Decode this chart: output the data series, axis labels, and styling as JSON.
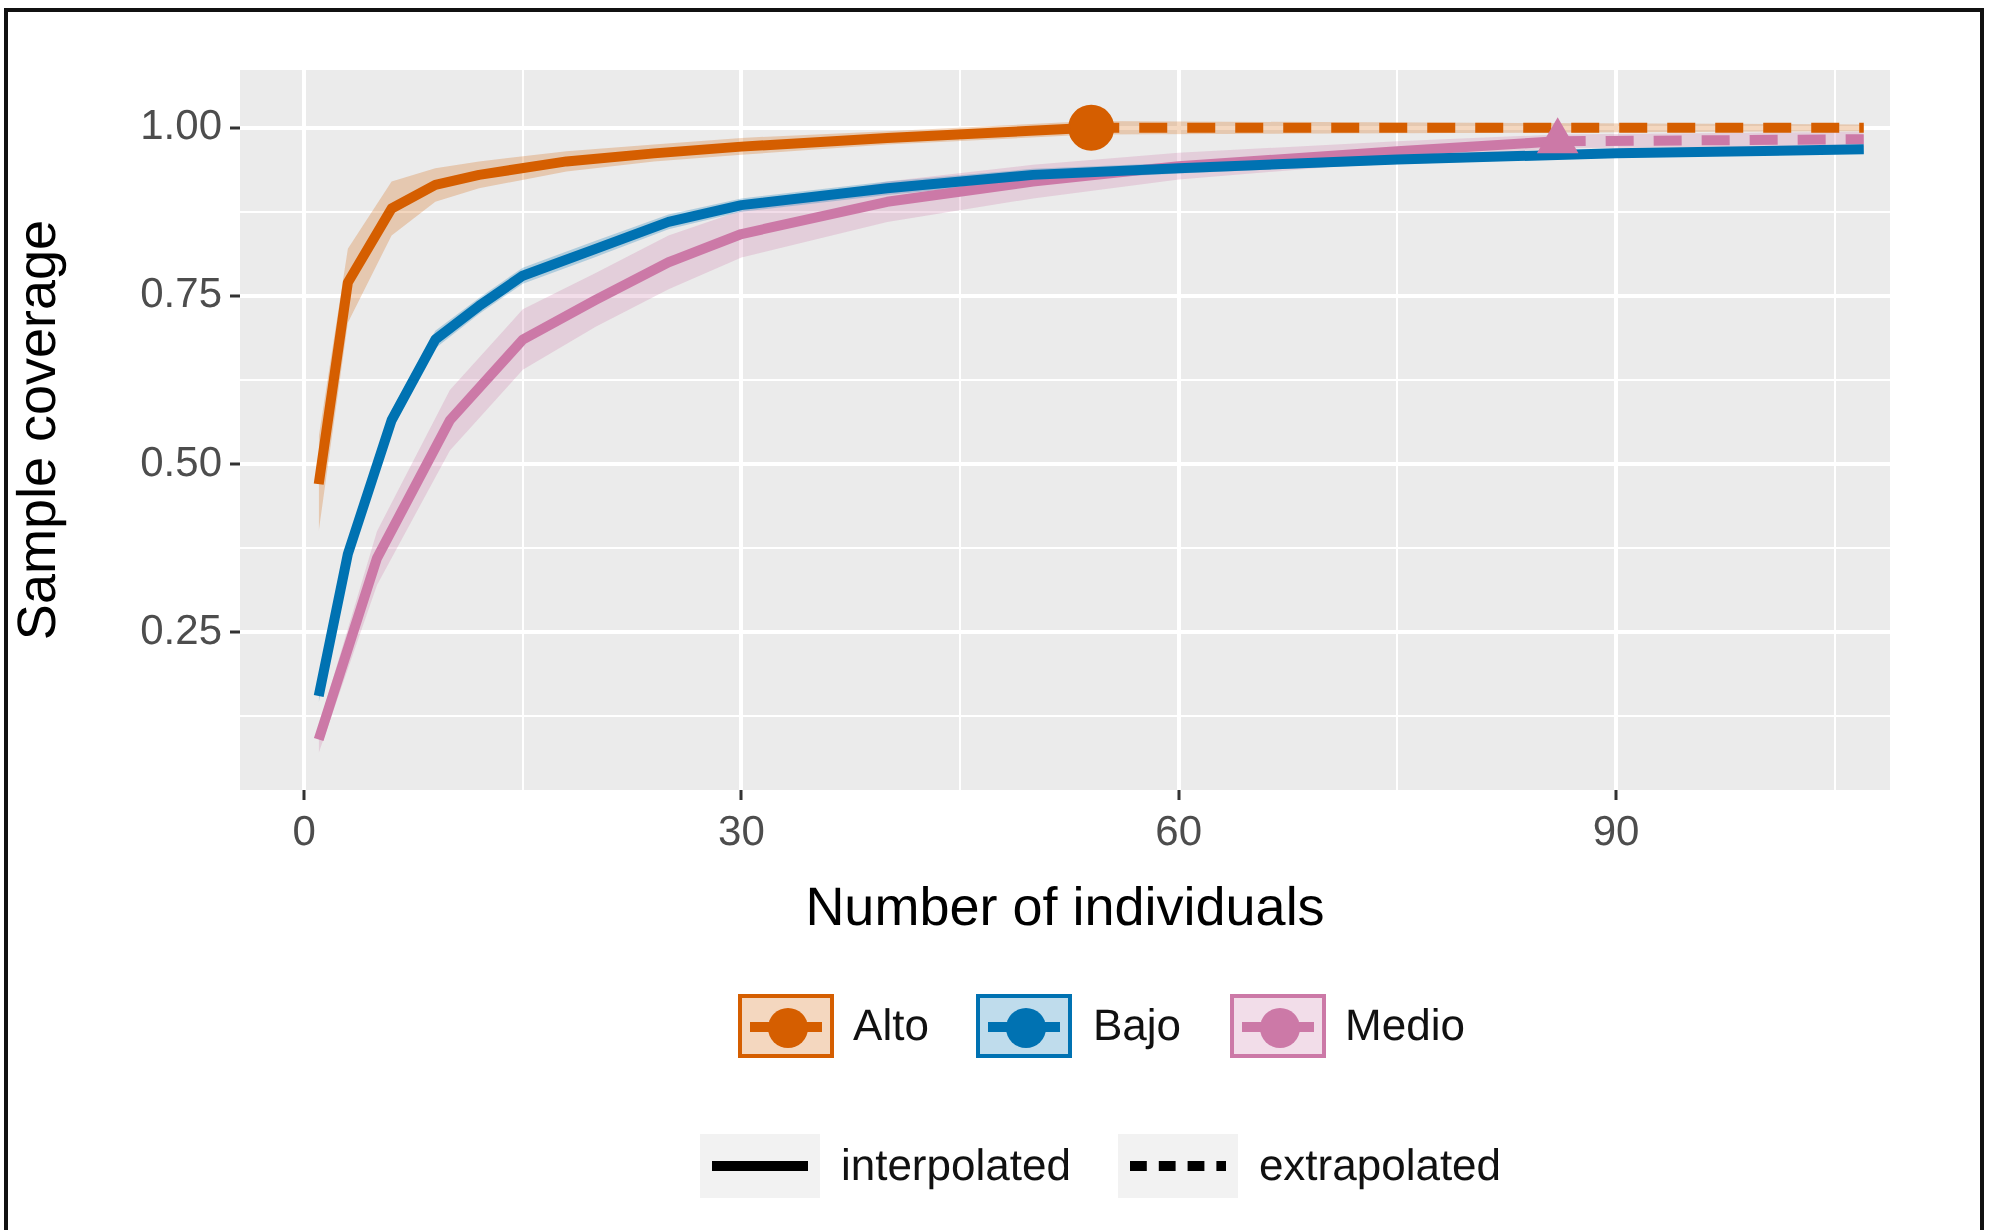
{
  "chart_data": {
    "type": "line",
    "xlabel": "Number of individuals",
    "ylabel": "Sample coverage",
    "xlim": [
      -4.4,
      108.8
    ],
    "ylim": [
      0.015,
      1.086
    ],
    "xticks": [
      0,
      {
        "value": 15,
        "label": null
      },
      30,
      {
        "value": 45,
        "label": null
      },
      60,
      {
        "value": 75,
        "label": null
      },
      90,
      {
        "value": 105,
        "label": null
      }
    ],
    "yticks": [
      {
        "value": 0.125,
        "label": null
      },
      {
        "value": 0.25,
        "label": "0.25"
      },
      {
        "value": 0.375,
        "label": null
      },
      {
        "value": 0.5,
        "label": "0.50"
      },
      {
        "value": 0.625,
        "label": null
      },
      {
        "value": 0.75,
        "label": "0.75"
      },
      {
        "value": 0.875,
        "label": null
      },
      {
        "value": 1.0,
        "label": "1.00"
      }
    ],
    "grid": true,
    "legend": "bottom",
    "line_style": "solid",
    "annotations": [
      "interpolated",
      "extrapolated"
    ],
    "series": [
      {
        "name": "Alto",
        "color": "#d55e00",
        "x": [
          1,
          3,
          6,
          9,
          12,
          18,
          24,
          30,
          40,
          54
        ],
        "values": [
          0.47,
          0.77,
          0.88,
          0.915,
          0.93,
          0.95,
          0.962,
          0.972,
          0.985,
          1.0
        ],
        "lower": [
          0.4,
          0.71,
          0.84,
          0.89,
          0.91,
          0.935,
          0.95,
          0.96,
          0.975,
          0.99
        ],
        "upper": [
          0.54,
          0.82,
          0.92,
          0.94,
          0.95,
          0.965,
          0.975,
          0.985,
          0.995,
          1.01
        ]
      },
      {
        "color": "#d55e00",
        "line_style": "dashed",
        "x": [
          54,
          107
        ],
        "values": [
          1.0,
          1.0
        ],
        "lower": [
          0.99,
          0.995
        ],
        "upper": [
          1.01,
          1.005
        ]
      },
      {
        "type": "scatter",
        "color": "#d55e00",
        "marker": "circle",
        "x": [
          54
        ],
        "values": [
          1.0
        ]
      },
      {
        "name": "Bajo",
        "color": "#0072b2",
        "x": [
          1,
          3,
          6,
          9,
          12,
          15,
          20,
          25,
          30,
          40,
          50,
          60,
          75,
          90,
          107
        ],
        "values": [
          0.155,
          0.366,
          0.565,
          0.685,
          0.735,
          0.78,
          0.82,
          0.86,
          0.885,
          0.91,
          0.93,
          0.94,
          0.953,
          0.962,
          0.968
        ],
        "lower": [
          0.145,
          0.35,
          0.55,
          0.672,
          0.723,
          0.768,
          0.808,
          0.849,
          0.875,
          0.9,
          0.921,
          0.932,
          0.946,
          0.956,
          0.963
        ],
        "upper": [
          0.165,
          0.382,
          0.58,
          0.698,
          0.747,
          0.792,
          0.832,
          0.871,
          0.895,
          0.92,
          0.939,
          0.948,
          0.96,
          0.968,
          0.973
        ]
      },
      {
        "name": "Medio",
        "color": "#cc79a7",
        "x": [
          1,
          5,
          10,
          15,
          20,
          25,
          30,
          40,
          50,
          60,
          75,
          86
        ],
        "values": [
          0.09,
          0.36,
          0.565,
          0.685,
          0.744,
          0.8,
          0.842,
          0.89,
          0.92,
          0.943,
          0.965,
          0.98
        ],
        "lower": [
          0.07,
          0.32,
          0.52,
          0.64,
          0.704,
          0.76,
          0.807,
          0.86,
          0.895,
          0.923,
          0.95,
          0.97
        ],
        "upper": [
          0.11,
          0.4,
          0.61,
          0.73,
          0.784,
          0.84,
          0.877,
          0.92,
          0.945,
          0.963,
          0.98,
          0.99
        ]
      },
      {
        "color": "#cc79a7",
        "line_style": "dashed",
        "x": [
          86,
          107
        ],
        "values": [
          0.98,
          0.983
        ],
        "lower": [
          0.97,
          0.972
        ],
        "upper": [
          0.99,
          0.994
        ]
      },
      {
        "type": "scatter",
        "color": "#cc79a7",
        "marker": "triangle",
        "x": [
          86
        ],
        "values": [
          0.98
        ]
      }
    ]
  }
}
